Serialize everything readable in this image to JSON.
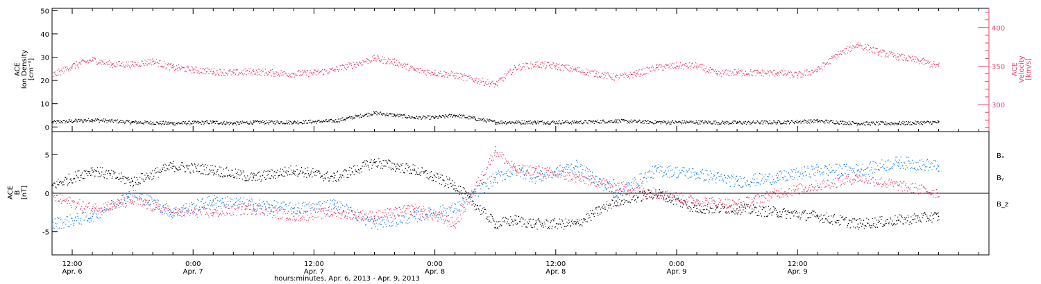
{
  "colors": {
    "black": "#000000",
    "pink": "#e8406a",
    "blue": "#1a7fe0"
  },
  "chart_data": [
    {
      "type": "scatter",
      "panel": "top",
      "title": "",
      "ylabel_left": [
        "ACE",
        "Ion Density",
        "[cm⁻³]"
      ],
      "ylabel_right": [
        "ACE",
        "Velocity",
        "[km/s]"
      ],
      "ylim_left": [
        -2,
        51
      ],
      "ylim_right": [
        265,
        425
      ],
      "yticks_left": [
        0,
        10,
        20,
        30,
        40,
        50
      ],
      "yticks_right": [
        300,
        350,
        400
      ],
      "series": [
        {
          "axis": "left",
          "color_key": "black",
          "x_hours": [
            0,
            4,
            8,
            12,
            16,
            18,
            20,
            24,
            28,
            32,
            34,
            36,
            38,
            40,
            42,
            44,
            46,
            48,
            52,
            56,
            60,
            64,
            68,
            72,
            76,
            80,
            84,
            88
          ],
          "y": [
            2,
            3,
            2,
            1.5,
            2,
            1.5,
            2,
            2,
            2.5,
            6,
            5,
            4,
            4,
            5,
            3.5,
            2,
            2,
            2,
            2,
            2.5,
            2,
            2,
            1.8,
            2,
            2.5,
            1.5,
            1.5,
            2
          ]
        },
        {
          "axis": "right",
          "color_key": "pink",
          "x_hours": [
            0,
            2,
            4,
            6,
            8,
            10,
            12,
            14,
            16,
            18,
            20,
            22,
            24,
            26,
            28,
            30,
            32,
            34,
            36,
            38,
            40,
            42,
            44,
            46,
            48,
            50,
            52,
            54,
            56,
            58,
            60,
            62,
            64,
            66,
            68,
            70,
            72,
            74,
            76,
            78,
            80,
            82,
            84,
            86,
            88
          ],
          "y": [
            338,
            350,
            358,
            352,
            352,
            356,
            348,
            345,
            343,
            341,
            343,
            341,
            340,
            341,
            345,
            352,
            360,
            355,
            345,
            341,
            338,
            332,
            326,
            348,
            352,
            350,
            345,
            340,
            335,
            340,
            348,
            350,
            350,
            340,
            342,
            341,
            341,
            338,
            345,
            365,
            378,
            368,
            362,
            357,
            350
          ]
        }
      ]
    },
    {
      "type": "scatter",
      "panel": "bottom",
      "title": "",
      "ylabel_left": [
        "ACE",
        "B",
        "[nT]"
      ],
      "ylim": [
        -8,
        8
      ],
      "yticks": [
        -5,
        0,
        5
      ],
      "legend_position": "right",
      "series": [
        {
          "name": "Bx",
          "color_key": "black",
          "x_hours": [
            0,
            4,
            8,
            12,
            16,
            20,
            24,
            28,
            32,
            36,
            40,
            44,
            46,
            48,
            52,
            56,
            60,
            64,
            68,
            72,
            76,
            80,
            84,
            88
          ],
          "y": [
            1,
            3,
            1.5,
            3.5,
            3,
            2,
            3,
            2,
            4,
            3,
            1,
            -4,
            -3.5,
            -4,
            -4,
            -1,
            0,
            -2,
            -2,
            -2.5,
            -3,
            -4,
            -3.5,
            -3
          ]
        },
        {
          "name": "By",
          "color_key": "blue",
          "x_hours": [
            0,
            4,
            8,
            12,
            16,
            20,
            24,
            28,
            32,
            36,
            40,
            44,
            46,
            48,
            52,
            56,
            60,
            64,
            68,
            72,
            76,
            80,
            84,
            88
          ],
          "y": [
            -4,
            -3,
            0,
            -2.5,
            -1,
            -1.5,
            -2,
            -1.5,
            -4,
            -3,
            -2,
            2,
            3,
            2,
            3.5,
            0,
            3,
            2.5,
            1.5,
            2,
            3,
            3,
            4,
            3.5
          ]
        },
        {
          "name": "Bz",
          "color_key": "pink",
          "x_hours": [
            0,
            4,
            8,
            12,
            16,
            20,
            24,
            28,
            32,
            36,
            40,
            44,
            46,
            48,
            52,
            56,
            60,
            64,
            68,
            72,
            76,
            80,
            84,
            88
          ],
          "y": [
            -0.5,
            -2,
            -1,
            -2.5,
            -2.5,
            -2,
            -3,
            -2.5,
            -3,
            -2,
            -4,
            5.5,
            3,
            3,
            2,
            1,
            0,
            -1,
            -1.5,
            0,
            1,
            2,
            1,
            0
          ]
        }
      ],
      "legend": {
        "Bx": "Bₓ",
        "By": "Bᵧ",
        "Bz": "B_z"
      }
    }
  ],
  "x_axis": {
    "xlim_hours": [
      0,
      93
    ],
    "xlabel": "hours:minutes, Apr.  6, 2013 - Apr.  9, 2013",
    "ticks": [
      {
        "hours": 2,
        "time": "12:00",
        "date": "Apr. 6"
      },
      {
        "hours": 14,
        "time": "0:00",
        "date": "Apr. 7"
      },
      {
        "hours": 26,
        "time": "12:00",
        "date": "Apr. 7"
      },
      {
        "hours": 38,
        "time": "0:00",
        "date": "Apr. 8"
      },
      {
        "hours": 50,
        "time": "12:00",
        "date": "Apr. 8"
      },
      {
        "hours": 62,
        "time": "0:00",
        "date": "Apr. 9"
      },
      {
        "hours": 74,
        "time": "12:00",
        "date": "Apr. 9"
      }
    ]
  }
}
